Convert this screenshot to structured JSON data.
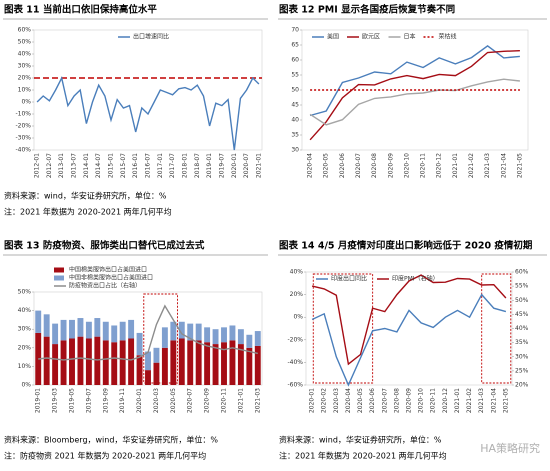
{
  "chart_data": [
    {
      "type": "line",
      "title": "图表 11 当前出口依旧保持高位水平",
      "source": "资料来源：wind，华安证券研究所，单位：%",
      "note": "注：2021 年数据为 2020-2021 两年几何平均",
      "categories": [
        "2012-01",
        null,
        "2012-07",
        null,
        "2013-01",
        null,
        "2013-07",
        null,
        "2014-01",
        null,
        "2014-07",
        null,
        "2015-01",
        null,
        "2015-07",
        null,
        "2016-01",
        null,
        "2016-07",
        null,
        "2017-01",
        null,
        "2017-07",
        null,
        "2018-01",
        null,
        "2018-07",
        null,
        "2019-01",
        null,
        "2019-07",
        null,
        "2020-01",
        null,
        "2020-07",
        null,
        "2021-01"
      ],
      "series": [
        {
          "name": "出口增速同比",
          "color": "#4a7ebb",
          "values": [
            0,
            5,
            1,
            10,
            20,
            -3,
            5,
            10,
            -18,
            0,
            14,
            5,
            -15,
            2,
            -5,
            -3,
            -25,
            -5,
            -10,
            0,
            10,
            8,
            6,
            11,
            12,
            10,
            14,
            5,
            -20,
            -1,
            -3,
            2,
            -40,
            3,
            10,
            20,
            15
          ]
        }
      ],
      "reference_line": {
        "value": 20,
        "color": "#c00000"
      },
      "ylim": [
        -40,
        60
      ],
      "yticks": [
        {
          "value": -40,
          "label": "-40%"
        },
        {
          "value": -30,
          "label": "-30%"
        },
        {
          "value": -20,
          "label": "-20%"
        },
        {
          "value": -10,
          "label": "-10%"
        },
        {
          "value": 0,
          "label": "0%"
        },
        {
          "value": 10,
          "label": "10%"
        },
        {
          "value": 20,
          "label": "20%"
        },
        {
          "value": 30,
          "label": "30%"
        },
        {
          "value": 40,
          "label": "40%"
        },
        {
          "value": 50,
          "label": "50%"
        },
        {
          "value": 60,
          "label": "60%"
        }
      ],
      "legend": "top"
    },
    {
      "type": "line",
      "title": "图表 12 PMI 显示各国疫后恢复节奏不同",
      "categories": [
        "2020-04",
        "2020-05",
        "2020-06",
        "2020-07",
        "2020-08",
        "2020-09",
        "2020-10",
        "2020-11",
        "2020-12",
        "2021-01",
        "2021-02",
        "2021-03",
        "2021-04",
        "2021-05"
      ],
      "series": [
        {
          "name": "美国",
          "color": "#4a7ebb",
          "values": [
            41.5,
            43,
            52.5,
            54,
            56,
            55.4,
            59.3,
            57.5,
            60.7,
            58.7,
            60.8,
            64.7,
            60.7,
            61.2
          ]
        },
        {
          "name": "欧元区",
          "color": "#a50d15",
          "values": [
            33.4,
            39.4,
            47.4,
            51.8,
            51.7,
            53.7,
            54.8,
            53.8,
            55.2,
            54.8,
            57.9,
            62.5,
            62.9,
            63.1
          ]
        },
        {
          "name": "日本",
          "color": "#a6a6a6",
          "values": [
            41.9,
            38.4,
            40.1,
            45.2,
            47.2,
            47.7,
            48.7,
            49,
            50,
            49.8,
            51.4,
            52.7,
            53.6,
            53
          ]
        },
        {
          "name": "荣枯线",
          "color": "#c00000",
          "dash": "dotted",
          "values": [
            50,
            50,
            50,
            50,
            50,
            50,
            50,
            50,
            50,
            50,
            50,
            50,
            50,
            50
          ]
        }
      ],
      "ylim": [
        30,
        70
      ],
      "yticks": [
        30,
        35,
        40,
        45,
        50,
        55,
        60,
        65,
        70
      ],
      "legend": "top"
    },
    {
      "type": "bar",
      "title": "图表 13 防疫物资、服饰类出口替代已成过去式",
      "source": "资料来源：Bloomberg，wind，华安证券研究所，单位：%",
      "note": "注：防疫物资 2021 年数据为 2020-2021 两年几何平均",
      "categories": [
        "2019-01",
        null,
        "2019-03",
        null,
        "2019-05",
        null,
        "2019-07",
        null,
        "2019-09",
        null,
        "2019-11",
        null,
        "2020-01",
        null,
        "2020-03",
        null,
        "2020-05",
        null,
        "2020-07",
        null,
        "2020-09",
        null,
        "2020-11",
        null,
        "2021-01",
        null,
        "2021-03"
      ],
      "series": [
        {
          "name": "中国棉类服饰出口占美国进口",
          "color": "#a50d15",
          "type": "bar",
          "values": [
            28,
            26,
            22,
            24,
            25,
            26,
            25,
            26,
            24,
            23,
            24,
            25,
            16,
            8,
            12,
            20,
            24,
            25,
            24,
            24,
            23,
            22,
            23,
            24,
            22,
            20,
            21
          ]
        },
        {
          "name": "中国非棉类服饰出口占美国进口",
          "color": "#7f9fcf",
          "type": "bar",
          "values": [
            12,
            12,
            11,
            11,
            10,
            10,
            9,
            10,
            10,
            9,
            10,
            10,
            12,
            10,
            8,
            11,
            10,
            9,
            9,
            9,
            8,
            8,
            8,
            8,
            8,
            7,
            8
          ]
        },
        {
          "name": "防疫物资出口占比（右轴）",
          "color": "#8c8c8c",
          "type": "line",
          "axis": "y2",
          "values": [
            2.8,
            2.9,
            2.8,
            2.7,
            2.8,
            2.9,
            2.8,
            2.7,
            2.8,
            2.9,
            2.8,
            2.7,
            3,
            3.5,
            6.5,
            8.5,
            7,
            5.5,
            5,
            4.5,
            4.2,
            4,
            3.8,
            4,
            3.8,
            3.6,
            3.4
          ]
        }
      ],
      "ylim": [
        0,
        50
      ],
      "yticks": [
        {
          "value": 0,
          "label": "0%"
        },
        {
          "value": 10,
          "label": "10%"
        },
        {
          "value": 20,
          "label": "20%"
        },
        {
          "value": 30,
          "label": "30%"
        },
        {
          "value": 40,
          "label": "40%"
        },
        {
          "value": 50,
          "label": "50%"
        }
      ],
      "y2lim": [
        0,
        10
      ],
      "legend": "top-left"
    },
    {
      "type": "line",
      "title": "图表 14 4/5 月疫情对印度出口影响远低于 2020 疫情初期",
      "source": "资料来源：wind，华安证券研究所，单位：%",
      "note": "注：2021 年数据为 2020-2021 两年几何平均",
      "categories": [
        "2020-01",
        "2020-02",
        "2020-03",
        "2020-04",
        "2020-05",
        "2020-06",
        "2020-07",
        "2020-08",
        "2020-09",
        "2020-10",
        "2020-11",
        "2020-12",
        "2021-01",
        "2021-02",
        "2021-03",
        "2021-04",
        "2021-05"
      ],
      "series": [
        {
          "name": "印度出口同比",
          "color": "#4a7ebb",
          "values": [
            -2,
            3,
            -35,
            -60,
            -36,
            -12,
            -10,
            -13,
            6,
            -5,
            -9,
            0,
            6,
            0,
            20,
            8,
            5
          ]
        },
        {
          "name": "印度PMI（右轴）",
          "color": "#a50d15",
          "axis": "y2",
          "values": [
            55,
            54,
            51.8,
            27.4,
            30.8,
            47.2,
            46,
            52,
            56.8,
            58.9,
            56.3,
            56.4,
            57.7,
            57.5,
            55.4,
            55.5,
            50.8
          ]
        }
      ],
      "ylim": [
        -60,
        40
      ],
      "yticks": [
        {
          "value": -60,
          "label": "-60%"
        },
        {
          "value": -40,
          "label": "-40%"
        },
        {
          "value": -20,
          "label": "-20%"
        },
        {
          "value": 0,
          "label": "0%"
        },
        {
          "value": 20,
          "label": "20%"
        },
        {
          "value": 40,
          "label": "40%"
        }
      ],
      "y2lim": [
        20,
        60
      ],
      "y2ticks": [
        {
          "value": 20,
          "label": "20%"
        },
        {
          "value": 25,
          "label": "25%"
        },
        {
          "value": 30,
          "label": "30%"
        },
        {
          "value": 35,
          "label": "35%"
        },
        {
          "value": 40,
          "label": "40%"
        },
        {
          "value": 45,
          "label": "45%"
        },
        {
          "value": 50,
          "label": "50%"
        },
        {
          "value": 55,
          "label": "55%"
        },
        {
          "value": 60,
          "label": "60%"
        }
      ],
      "legend": "top"
    }
  ],
  "watermark": "HA策略研究"
}
